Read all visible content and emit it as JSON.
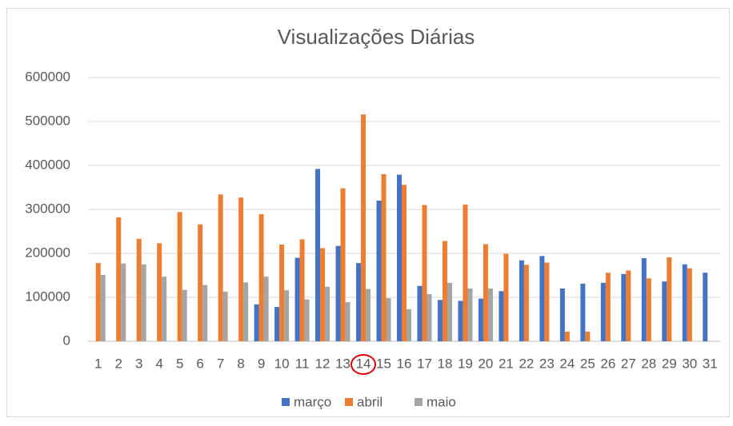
{
  "chart_data": {
    "type": "bar",
    "title": "Visualizações Diárias",
    "categories": [
      "1",
      "2",
      "3",
      "4",
      "5",
      "6",
      "7",
      "8",
      "9",
      "10",
      "11",
      "12",
      "13",
      "14",
      "15",
      "16",
      "17",
      "18",
      "19",
      "20",
      "21",
      "22",
      "23",
      "24",
      "25",
      "26",
      "27",
      "28",
      "29",
      "30",
      "31"
    ],
    "series": [
      {
        "name": "março",
        "color": "#4472c4",
        "values": [
          null,
          null,
          null,
          null,
          null,
          null,
          null,
          null,
          84000,
          78000,
          190000,
          392000,
          217000,
          178000,
          320000,
          379000,
          126000,
          94000,
          92000,
          97000,
          114000,
          184000,
          194000,
          120000,
          131000,
          133000,
          153000,
          189000,
          136000,
          175000,
          156000
        ]
      },
      {
        "name": "abril",
        "color": "#ed7d31",
        "values": [
          178000,
          282000,
          233000,
          223000,
          294000,
          266000,
          334000,
          327000,
          289000,
          220000,
          232000,
          212000,
          348000,
          516000,
          380000,
          356000,
          310000,
          228000,
          311000,
          221000,
          199000,
          174000,
          179000,
          22000,
          22000,
          156000,
          161000,
          143000,
          191000,
          166000,
          null
        ]
      },
      {
        "name": "maio",
        "color": "#a5a5a5",
        "values": [
          151000,
          177000,
          175000,
          147000,
          117000,
          128000,
          113000,
          134000,
          147000,
          116000,
          95000,
          124000,
          89000,
          119000,
          98000,
          73000,
          107000,
          133000,
          120000,
          120000,
          null,
          null,
          null,
          null,
          null,
          null,
          null,
          null,
          null,
          null,
          null
        ]
      }
    ],
    "ylim": [
      0,
      600000
    ],
    "yticks": [
      0,
      100000,
      200000,
      300000,
      400000,
      500000,
      600000
    ],
    "grid": true,
    "legend": "bottom"
  }
}
